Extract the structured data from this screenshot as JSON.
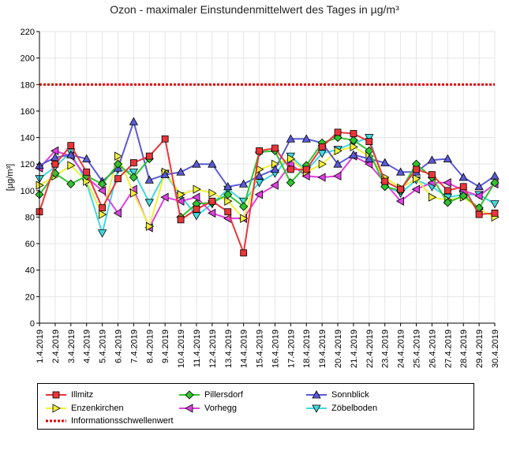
{
  "chart_data": {
    "type": "line",
    "title": "Ozon -  maximaler Einstundenmittelwert des Tages in µg/m³",
    "ylabel": "[µg/m³]",
    "xlabel": "",
    "ylim": [
      0,
      220
    ],
    "yticks": [
      0,
      20,
      40,
      60,
      80,
      100,
      120,
      140,
      160,
      180,
      200,
      220
    ],
    "grid": true,
    "legend_position": "bottom",
    "categories": [
      "1.4.2019",
      "2.4.2019",
      "3.4.2019",
      "4.4.2019",
      "5.4.2019",
      "6.4.2019",
      "7.4.2019",
      "8.4.2019",
      "9.4.2019",
      "10.4.2019",
      "11.4.2019",
      "12.4.2019",
      "13.4.2019",
      "14.4.2019",
      "15.4.2019",
      "16.4.2019",
      "17.4.2019",
      "18.4.2019",
      "19.4.2019",
      "20.4.2019",
      "21.4.2019",
      "22.4.2019",
      "23.4.2019",
      "24.4.2019",
      "25.4.2019",
      "26.4.2019",
      "27.4.2019",
      "28.4.2019",
      "29.4.2019",
      "30.4.2019"
    ],
    "series": [
      {
        "name": "Illmitz",
        "color": "#e8363a",
        "fill": "#e8363a",
        "marker": "square",
        "values": [
          84,
          120,
          134,
          114,
          87,
          109,
          121,
          126,
          139,
          78,
          86,
          92,
          84,
          53,
          130,
          132,
          116,
          116,
          133,
          144,
          143,
          137,
          107,
          101,
          116,
          112,
          100,
          103,
          82,
          83
        ]
      },
      {
        "name": "Pillersdorf",
        "color": "#2fc42f",
        "fill": "#2fc42f",
        "marker": "diamond",
        "values": [
          97,
          113,
          105,
          111,
          105,
          120,
          110,
          124,
          null,
          80,
          90,
          91,
          97,
          88,
          129,
          130,
          106,
          119,
          136,
          140,
          138,
          130,
          103,
          100,
          120,
          110,
          91,
          96,
          87,
          106
        ]
      },
      {
        "name": "Sonnblick",
        "color": "#5a5ad6",
        "fill": "#5a5ad6",
        "marker": "triangle-up",
        "values": [
          119,
          125,
          127,
          124,
          107,
          117,
          152,
          108,
          112,
          114,
          120,
          120,
          103,
          105,
          111,
          116,
          139,
          139,
          136,
          120,
          127,
          124,
          121,
          114,
          114,
          123,
          124,
          110,
          103,
          111
        ]
      },
      {
        "name": "Enzenkirchen",
        "color": "#f0f03a",
        "fill": "#f0f03a",
        "marker": "triangle-right",
        "values": [
          104,
          111,
          119,
          107,
          82,
          126,
          98,
          73,
          114,
          97,
          101,
          98,
          92,
          79,
          116,
          120,
          124,
          114,
          120,
          130,
          133,
          126,
          110,
          102,
          109,
          95,
          93,
          95,
          86,
          80
        ]
      },
      {
        "name": "Vorhegg",
        "color": "#e040e0",
        "fill": "#e040e0",
        "marker": "triangle-left",
        "values": [
          117,
          130,
          126,
          110,
          100,
          83,
          101,
          72,
          95,
          92,
          95,
          83,
          79,
          79,
          97,
          104,
          120,
          111,
          110,
          111,
          126,
          120,
          106,
          92,
          101,
          106,
          106,
          100,
          96,
          105
        ]
      },
      {
        "name": "Zöbelboden",
        "color": "#40d8e0",
        "fill": "#40d8e0",
        "marker": "triangle-down",
        "values": [
          109,
          118,
          129,
          106,
          68,
          116,
          114,
          91,
          113,
          96,
          81,
          90,
          101,
          92,
          106,
          113,
          126,
          115,
          128,
          131,
          136,
          140,
          104,
          98,
          108,
          103,
          95,
          97,
          97,
          90
        ]
      }
    ],
    "reference_lines": [
      {
        "name": "Informationsschwellenwert",
        "value": 180,
        "color": "#e00000",
        "style": "dotted"
      }
    ]
  }
}
